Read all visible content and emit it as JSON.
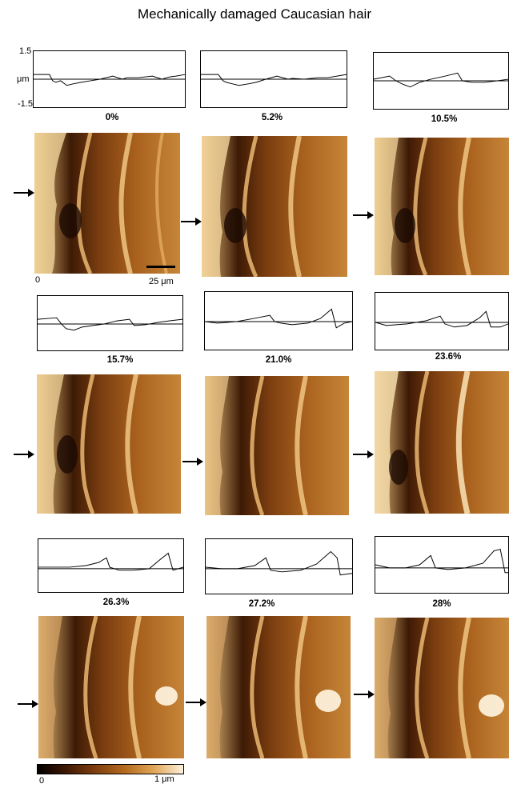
{
  "title": "Mechanically damaged Caucasian hair",
  "y_axis": {
    "top": "1.5",
    "unit": "μm",
    "bottom": "-1.5"
  },
  "strains": [
    "0%",
    "5.2%",
    "10.5%",
    "15.7%",
    "21.0%",
    "23.6%",
    "26.3%",
    "27.2%",
    "28%"
  ],
  "image_axis": {
    "origin": "0",
    "scale_label": "25 μm"
  },
  "color_scale": {
    "min": "0",
    "max": "1 μm"
  }
}
